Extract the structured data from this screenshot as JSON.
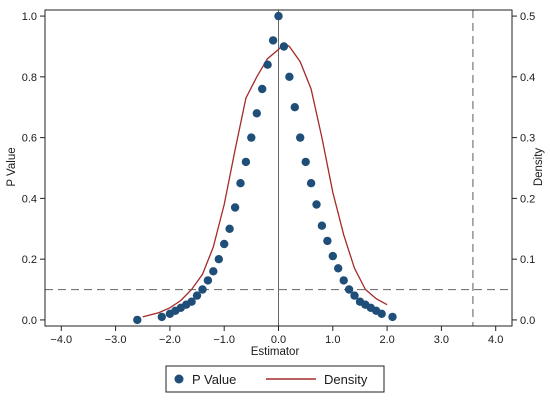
{
  "chart_data": {
    "type": "scatter",
    "xlabel": "Estimator",
    "ylabel_left": "P Value",
    "ylabel_right": "Density",
    "xlim": [
      -4.3,
      4.3
    ],
    "ylim_left": [
      -0.02,
      1.02
    ],
    "ylim_right": [
      -0.01,
      0.51
    ],
    "x_ticks": [
      -4.0,
      -3.0,
      -2.0,
      -1.0,
      0.0,
      1.0,
      2.0,
      3.0,
      4.0
    ],
    "x_tick_labels": [
      "−4.0",
      "−3.0",
      "−2.0",
      "−1.0",
      "0.0",
      "1.0",
      "2.0",
      "3.0",
      "4.0"
    ],
    "y_left_ticks": [
      0.0,
      0.2,
      0.4,
      0.6,
      0.8,
      1.0
    ],
    "y_left_tick_labels": [
      "0.0",
      "0.2",
      "0.4",
      "0.6",
      "0.8",
      "1.0"
    ],
    "y_right_ticks": [
      0.0,
      0.1,
      0.2,
      0.3,
      0.4,
      0.5
    ],
    "y_right_tick_labels": [
      "0.0",
      "0.1",
      "0.2",
      "0.3",
      "0.4",
      "0.5"
    ],
    "reference_lines": {
      "vertical_solid_x": 0.0,
      "vertical_dashed_x": 3.58,
      "horizontal_dashed_y": 0.1
    },
    "series": [
      {
        "name": "P Value",
        "kind": "scatter",
        "axis": "left",
        "color": "#1f4e79",
        "x": [
          -2.6,
          -2.15,
          -2.0,
          -1.9,
          -1.8,
          -1.7,
          -1.6,
          -1.5,
          -1.4,
          -1.3,
          -1.2,
          -1.1,
          -1.0,
          -0.9,
          -0.8,
          -0.7,
          -0.6,
          -0.5,
          -0.4,
          -0.3,
          -0.2,
          -0.1,
          0.0,
          0.1,
          0.2,
          0.3,
          0.4,
          0.5,
          0.6,
          0.7,
          0.8,
          0.9,
          1.0,
          1.1,
          1.2,
          1.3,
          1.4,
          1.5,
          1.6,
          1.7,
          1.8,
          1.9,
          2.1
        ],
        "y": [
          0.0,
          0.01,
          0.02,
          0.03,
          0.04,
          0.05,
          0.06,
          0.08,
          0.1,
          0.13,
          0.16,
          0.2,
          0.25,
          0.3,
          0.37,
          0.45,
          0.52,
          0.6,
          0.68,
          0.76,
          0.84,
          0.92,
          1.0,
          0.9,
          0.8,
          0.7,
          0.6,
          0.52,
          0.45,
          0.38,
          0.31,
          0.26,
          0.21,
          0.17,
          0.13,
          0.1,
          0.08,
          0.06,
          0.05,
          0.04,
          0.03,
          0.02,
          0.01
        ]
      },
      {
        "name": "Density",
        "kind": "line",
        "axis": "right",
        "color": "#a52a2a",
        "x": [
          -2.5,
          -2.2,
          -2.0,
          -1.8,
          -1.6,
          -1.4,
          -1.2,
          -1.0,
          -0.8,
          -0.6,
          -0.4,
          -0.2,
          0.0,
          0.1,
          0.2,
          0.4,
          0.6,
          0.8,
          1.0,
          1.2,
          1.4,
          1.6,
          1.8,
          2.0
        ],
        "y": [
          0.005,
          0.012,
          0.02,
          0.032,
          0.05,
          0.075,
          0.12,
          0.19,
          0.28,
          0.365,
          0.4,
          0.43,
          0.445,
          0.455,
          0.45,
          0.425,
          0.38,
          0.3,
          0.21,
          0.14,
          0.085,
          0.05,
          0.035,
          0.025
        ]
      }
    ],
    "legend": {
      "position": "bottom",
      "items": [
        {
          "label": "P Value",
          "marker": "circle"
        },
        {
          "label": "Density",
          "marker": "line"
        }
      ]
    }
  }
}
